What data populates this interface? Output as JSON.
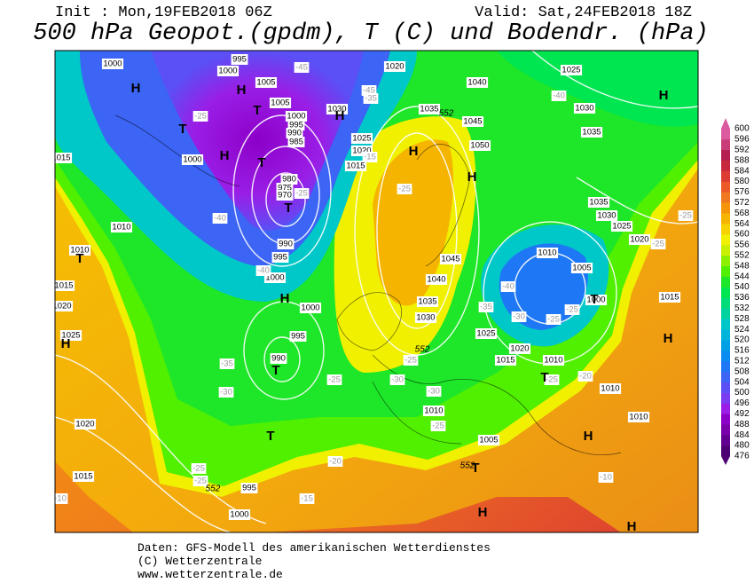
{
  "header": {
    "init": "Init : Mon,19FEB2018 06Z",
    "valid": "Valid: Sat,24FEB2018 18Z",
    "title": "500 hPa Geopot.(gpdm), T (C) und Bodendr. (hPa)"
  },
  "colorbar": {
    "levels": [
      476,
      480,
      484,
      488,
      492,
      496,
      500,
      504,
      508,
      512,
      516,
      520,
      524,
      528,
      532,
      536,
      540,
      544,
      548,
      552,
      556,
      560,
      564,
      568,
      572,
      576,
      580,
      584,
      588,
      592,
      596,
      600
    ],
    "colors": [
      "#4c0072",
      "#62008f",
      "#7a00aa",
      "#8c00c8",
      "#9a1ee6",
      "#7a3cf0",
      "#5a50f5",
      "#3c64f5",
      "#1e78f5",
      "#0a8cf0",
      "#00a0e6",
      "#00b4dc",
      "#00c8c8",
      "#00d2a0",
      "#00dc78",
      "#00e650",
      "#1ee628",
      "#50f000",
      "#8cf000",
      "#c8f000",
      "#f0f000",
      "#f5d200",
      "#f5b400",
      "#f5960a",
      "#f0781e",
      "#eb5a28",
      "#dc3c32",
      "#c8283c",
      "#b41e50",
      "#c83c78",
      "#dc5aa0"
    ]
  },
  "map": {
    "pressure_labels": [
      1000,
      1000,
      995,
      1005,
      1005,
      1000,
      995,
      990,
      985,
      980,
      975,
      970,
      1030,
      1025,
      1020,
      1015,
      1035,
      1045,
      1050,
      1040,
      1020,
      1025,
      1030,
      1035,
      1035,
      1030,
      1025,
      1020,
      1015,
      1010,
      1010,
      1015,
      1020,
      1025,
      1000,
      990,
      995,
      1000,
      1000,
      995,
      990,
      1045,
      1040,
      1035,
      1030,
      1025,
      1020,
      1015,
      1010,
      1010,
      1010,
      1005,
      1010,
      1005,
      1000,
      1015,
      1020,
      1015,
      995,
      1000,
      1010
    ],
    "temperature_labels": [
      -25,
      -40,
      -40,
      -35,
      -30,
      -25,
      -25,
      -10,
      -20,
      -15,
      -25,
      -25,
      -25,
      -30,
      -30,
      -25,
      -40,
      -35,
      -30,
      -25,
      -25,
      -25,
      -20,
      -25,
      -25,
      -10,
      -40,
      -45,
      -35,
      -45,
      -15,
      -25
    ],
    "contour_labels": [
      552,
      552,
      552,
      552
    ],
    "centers": [
      "H",
      "H",
      "T",
      "T",
      "H",
      "T",
      "T",
      "T",
      "H",
      "H",
      "T",
      "T",
      "H",
      "H",
      "H",
      "H",
      "T",
      "H",
      "H",
      "T",
      "T",
      "H",
      "H"
    ]
  },
  "footer": {
    "lines": [
      "Daten: GFS-Modell des amerikanischen Wetterdienstes",
      "(C) Wetterzentrale",
      "www.wetterzentrale.de"
    ]
  }
}
